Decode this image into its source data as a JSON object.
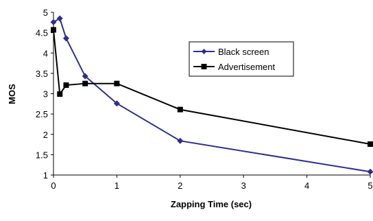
{
  "chart_data": {
    "type": "line",
    "title": "",
    "xlabel": "Zapping Time (sec)",
    "ylabel": "MOS",
    "xlim": [
      0,
      5
    ],
    "ylim": [
      1,
      5
    ],
    "x_ticks": [
      "0",
      "1",
      "2",
      "3",
      "4",
      "5"
    ],
    "y_ticks": [
      "1",
      "1.5",
      "2",
      "2.5",
      "3",
      "3.5",
      "4",
      "4.5",
      "5"
    ],
    "grid": false,
    "legend_position": "right",
    "series": [
      {
        "name": "Black screen",
        "marker": "diamond",
        "color": "#2e2e8a",
        "x": [
          0,
          0.1,
          0.2,
          0.5,
          1,
          2,
          5
        ],
        "y": [
          4.76,
          4.85,
          4.36,
          3.43,
          2.76,
          1.84,
          1.08
        ]
      },
      {
        "name": "Advertisement",
        "marker": "square",
        "color": "#000000",
        "x": [
          0,
          0.1,
          0.2,
          0.5,
          1,
          2,
          5
        ],
        "y": [
          4.57,
          2.99,
          3.21,
          3.25,
          3.25,
          2.61,
          1.76
        ]
      }
    ]
  }
}
